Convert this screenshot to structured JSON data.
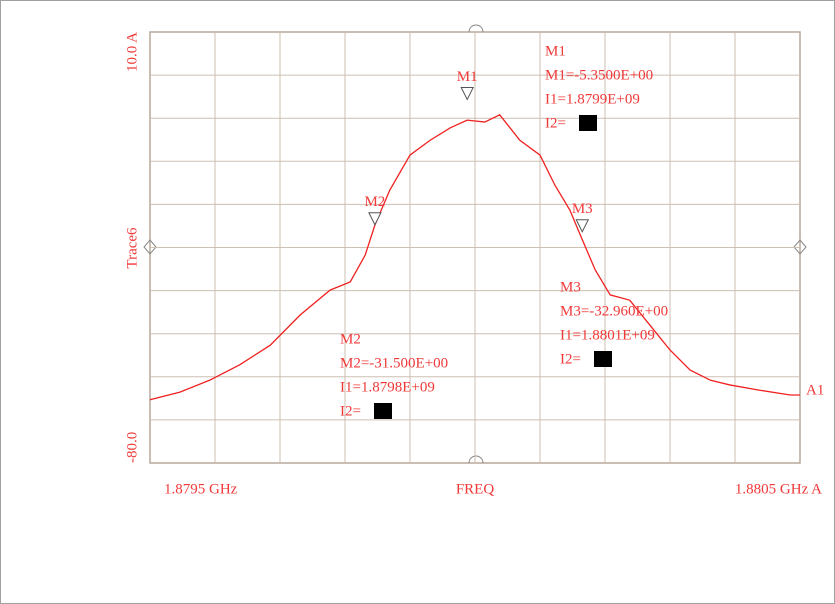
{
  "chart_data": {
    "type": "line",
    "xlabel": "FREQ",
    "ylabel": "Trace6",
    "xlim": [
      1.8795,
      1.8805
    ],
    "ylim": [
      -80,
      10
    ],
    "xticks": [
      {
        "value": 1.8795,
        "label": "1.8795  GHz"
      },
      {
        "value": 1.8805,
        "label": "1.8805  GHz A"
      }
    ],
    "yticks": [
      {
        "value": 10,
        "label": "10.0 A"
      },
      {
        "value": -80,
        "label": "-80.0"
      }
    ],
    "grid": true,
    "series": [
      {
        "name": "A1",
        "color": "#f02020",
        "x": [
          1.8795,
          1.879546,
          1.879592,
          1.879638,
          1.879685,
          1.879731,
          1.879777,
          1.879808,
          1.879831,
          1.879846,
          1.879869,
          1.8799,
          1.879931,
          1.879962,
          1.879988,
          1.880015,
          1.880038,
          1.880069,
          1.8801,
          1.880123,
          1.880146,
          1.880162,
          1.880185,
          1.880208,
          1.880238,
          1.880269,
          1.8803,
          1.880331,
          1.880362,
          1.880392,
          1.880438,
          1.880485,
          1.8805
        ],
        "values": [
          -66.8,
          -65.2,
          -62.7,
          -59.5,
          -55.4,
          -49.1,
          -43.9,
          -42.2,
          -36.6,
          -30.3,
          -23.0,
          -15.7,
          -12.6,
          -10.0,
          -8.4,
          -8.8,
          -7.3,
          -12.6,
          -15.7,
          -22.0,
          -27.2,
          -32.4,
          -39.7,
          -44.9,
          -46.0,
          -51.2,
          -56.4,
          -60.6,
          -62.7,
          -63.7,
          -64.8,
          -65.8,
          -65.8
        ]
      }
    ],
    "markers": [
      {
        "label": "M1",
        "x": 1.879988,
        "value": -5.35,
        "readout": [
          "M1",
          "M1=-5.3500E+00",
          "I1=1.8799E+09",
          "I2="
        ]
      },
      {
        "label": "M2",
        "x": 1.879846,
        "value": -31.5,
        "readout": [
          "M2",
          "M2=-31.500E+00",
          "I1=1.8798E+09",
          "I2="
        ]
      },
      {
        "label": "M3",
        "x": 1.880165,
        "value": -32.96,
        "readout": [
          "M3",
          "M3=-32.960E+00",
          "I1=1.8801E+09",
          "I2="
        ]
      }
    ]
  }
}
